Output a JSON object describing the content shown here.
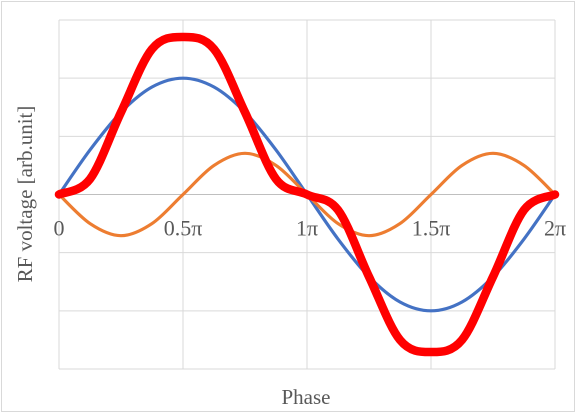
{
  "chart_data": {
    "type": "line",
    "xlabel": "Phase",
    "ylabel": "RF voltage [arb.unit]",
    "x_tick_labels": [
      "0",
      "0.5π",
      "1π",
      "1.5π",
      "2π"
    ],
    "x_ticks_rad": [
      0,
      1.5708,
      3.1416,
      4.7124,
      6.2832
    ],
    "xlim": [
      0,
      6.2832
    ],
    "ylim": [
      -1.5,
      1.5
    ],
    "y_gridlines": [
      -1.5,
      -1.0,
      -0.5,
      0,
      0.5,
      1.0,
      1.5
    ],
    "y_tick_labels_shown": false,
    "grid": true,
    "legend": "none",
    "series": [
      {
        "color": "#4472c4",
        "line_width": "normal",
        "x": [
          0,
          0.3927,
          0.7854,
          1.1781,
          1.5708,
          1.9635,
          2.3562,
          2.7489,
          3.1416,
          3.5343,
          3.927,
          4.3197,
          4.7124,
          5.1051,
          5.4978,
          5.8905,
          6.2832
        ],
        "y": [
          0,
          0.383,
          0.707,
          0.924,
          1.0,
          0.924,
          0.707,
          0.383,
          0,
          -0.383,
          -0.707,
          -0.924,
          -1.0,
          -0.924,
          -0.707,
          -0.383,
          0
        ]
      },
      {
        "color": "#ed7d31",
        "line_width": "normal",
        "x": [
          0,
          0.3927,
          0.7854,
          1.1781,
          1.5708,
          1.9635,
          2.3562,
          2.7489,
          3.1416,
          3.5343,
          3.927,
          4.3197,
          4.7124,
          5.1051,
          5.4978,
          5.8905,
          6.2832
        ],
        "y": [
          0,
          -0.25,
          -0.354,
          -0.25,
          0,
          0.25,
          0.354,
          0.25,
          0,
          -0.25,
          -0.354,
          -0.25,
          0,
          0.25,
          0.354,
          0.25,
          0
        ]
      },
      {
        "color": "#ff0000",
        "line_width": "thick",
        "x": [
          0,
          0.3927,
          0.7854,
          1.1781,
          1.5708,
          1.9635,
          2.3562,
          2.7489,
          3.1416,
          3.5343,
          3.927,
          4.3197,
          4.7124,
          5.1051,
          5.4978,
          5.8905,
          6.2832
        ],
        "y": [
          0,
          0.133,
          0.707,
          1.25,
          1.354,
          1.25,
          0.707,
          0.133,
          0,
          -0.133,
          -0.707,
          -1.25,
          -1.354,
          -1.25,
          -0.707,
          -0.133,
          0
        ]
      }
    ]
  }
}
